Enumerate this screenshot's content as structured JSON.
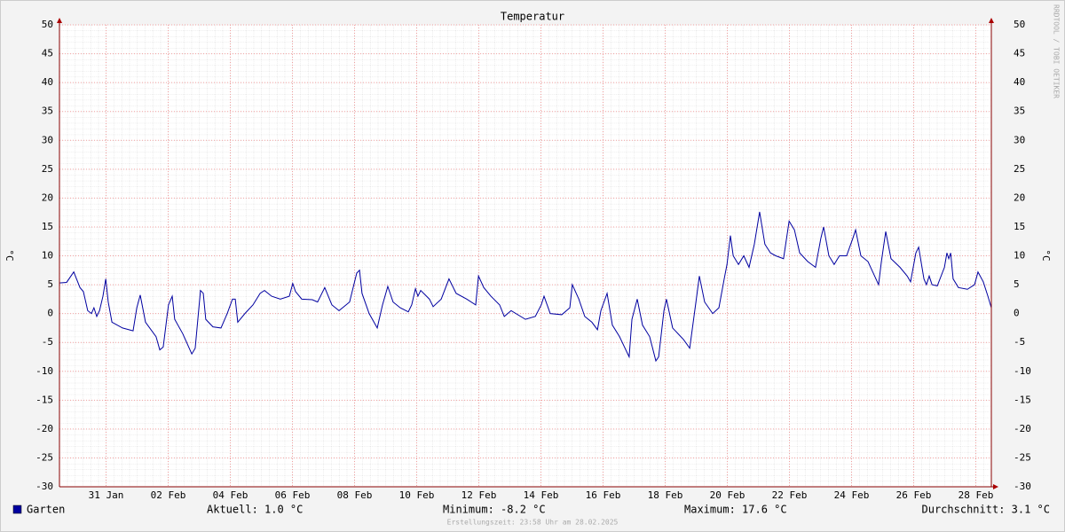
{
  "chart_data": {
    "type": "line",
    "title": "Temperatur",
    "y_label": "°C",
    "watermark": "RRDTOOL / TOBI OETIKER",
    "footer": "Erstellungszeit: 23:58 Uhr am 28.02.2025",
    "stats": [
      "Aktuell: 1.0 °C",
      "Minimum: -8.2 °C",
      "Maximum: 17.6 °C",
      "Durchschnitt: 3.1 °C"
    ],
    "xlim": [
      29.5,
      59.5
    ],
    "ylim": [
      -30,
      50
    ],
    "yticks": [
      -30,
      -25,
      -20,
      -15,
      -10,
      -5,
      0,
      5,
      10,
      15,
      20,
      25,
      30,
      35,
      40,
      45,
      50
    ],
    "xticks": [
      {
        "value": 31,
        "label": "31 Jan"
      },
      {
        "value": 33,
        "label": "02 Feb"
      },
      {
        "value": 35,
        "label": "04 Feb"
      },
      {
        "value": 37,
        "label": "06 Feb"
      },
      {
        "value": 39,
        "label": "08 Feb"
      },
      {
        "value": 41,
        "label": "10 Feb"
      },
      {
        "value": 43,
        "label": "12 Feb"
      },
      {
        "value": 45,
        "label": "14 Feb"
      },
      {
        "value": 47,
        "label": "16 Feb"
      },
      {
        "value": 49,
        "label": "18 Feb"
      },
      {
        "value": 51,
        "label": "20 Feb"
      },
      {
        "value": 53,
        "label": "22 Feb"
      },
      {
        "value": 55,
        "label": "24 Feb"
      },
      {
        "value": 57,
        "label": "26 Feb"
      },
      {
        "value": 59,
        "label": "28 Feb"
      }
    ],
    "grid": true,
    "x": [
      29.5,
      29.73,
      29.96,
      30.16,
      30.27,
      30.41,
      30.53,
      30.61,
      30.7,
      30.79,
      30.9,
      30.99,
      31.07,
      31.19,
      31.53,
      31.87,
      31.99,
      32.1,
      32.27,
      32.61,
      32.73,
      32.84,
      33.01,
      33.13,
      33.21,
      33.47,
      33.76,
      33.87,
      34.04,
      34.13,
      34.21,
      34.44,
      34.7,
      34.9,
      35.07,
      35.16,
      35.24,
      35.47,
      35.73,
      35.96,
      36.1,
      36.33,
      36.61,
      36.9,
      37.01,
      37.1,
      37.3,
      37.64,
      37.81,
      38.04,
      38.27,
      38.5,
      38.84,
      39.07,
      39.16,
      39.24,
      39.47,
      39.73,
      39.9,
      40.07,
      40.24,
      40.47,
      40.73,
      40.84,
      40.96,
      41.04,
      41.13,
      41.41,
      41.53,
      41.79,
      42.04,
      42.27,
      42.61,
      42.9,
      42.99,
      43.16,
      43.39,
      43.67,
      43.82,
      44.04,
      44.5,
      44.82,
      45.01,
      45.1,
      45.3,
      45.67,
      45.93,
      46.01,
      46.22,
      46.41,
      46.64,
      46.82,
      46.93,
      47.13,
      47.3,
      47.53,
      47.84,
      47.93,
      48.1,
      48.27,
      48.5,
      48.7,
      48.79,
      48.96,
      49.04,
      49.24,
      49.59,
      49.79,
      49.99,
      50.1,
      50.27,
      50.53,
      50.73,
      50.9,
      50.99,
      51.1,
      51.19,
      51.36,
      51.53,
      51.7,
      51.87,
      52.04,
      52.21,
      52.39,
      52.56,
      52.81,
      52.99,
      53.16,
      53.33,
      53.59,
      53.84,
      54.01,
      54.1,
      54.27,
      54.44,
      54.61,
      54.84,
      55.04,
      55.13,
      55.3,
      55.53,
      55.7,
      55.87,
      55.96,
      56.1,
      56.27,
      56.56,
      56.79,
      56.9,
      57.07,
      57.16,
      57.33,
      57.41,
      57.5,
      57.59,
      57.76,
      57.99,
      58.07,
      58.13,
      58.19,
      58.27,
      58.44,
      58.73,
      58.96,
      59.07,
      59.24,
      59.39,
      59.5
    ],
    "series": [
      {
        "name": "Garten",
        "color": "#0000a0",
        "values": [
          5.3,
          5.4,
          7.2,
          4.5,
          3.8,
          0.5,
          0,
          1,
          -0.5,
          0.5,
          3,
          6,
          2,
          -1.5,
          -2.5,
          -3,
          1,
          3.2,
          -1.5,
          -4,
          -6.3,
          -5.8,
          1.5,
          3,
          -1,
          -3.5,
          -7,
          -6,
          4,
          3.5,
          -1,
          -2.3,
          -2.5,
          0,
          2.5,
          2.5,
          -1.5,
          0,
          1.5,
          3.5,
          4,
          3,
          2.5,
          3,
          5.2,
          3.8,
          2.5,
          2.4,
          2,
          4.5,
          1.5,
          0.5,
          2,
          7,
          7.5,
          3.5,
          0,
          -2.5,
          1.5,
          4.7,
          2,
          1,
          0.3,
          1.5,
          4.3,
          3,
          4,
          2.5,
          1.2,
          2.5,
          6,
          3.5,
          2.5,
          1.5,
          6.5,
          4.5,
          3,
          1.5,
          -0.5,
          0.5,
          -1,
          -0.5,
          1.5,
          3,
          0,
          -0.2,
          1,
          5,
          2.5,
          -0.5,
          -1.5,
          -2.8,
          0.5,
          3.5,
          -2,
          -4,
          -7.5,
          -1,
          2.5,
          -2,
          -4,
          -8.2,
          -7.5,
          0.5,
          2.5,
          -2.5,
          -4.5,
          -6,
          2,
          6.5,
          2,
          0,
          1,
          6,
          8.5,
          13.5,
          10,
          8.5,
          10,
          8,
          12,
          17.6,
          12,
          10.5,
          10,
          9.5,
          16,
          14.5,
          10.5,
          9,
          8,
          13,
          15,
          10,
          8.5,
          10,
          10,
          13,
          14.5,
          10,
          9,
          7,
          5,
          9,
          14.2,
          9.5,
          8,
          6.5,
          5.5,
          10.5,
          11.5,
          6,
          5,
          6.5,
          5,
          4.8,
          8,
          10.5,
          9.5,
          10.5,
          6,
          4.5,
          4.2,
          5,
          7.2,
          5.5,
          3,
          1
        ]
      }
    ]
  }
}
